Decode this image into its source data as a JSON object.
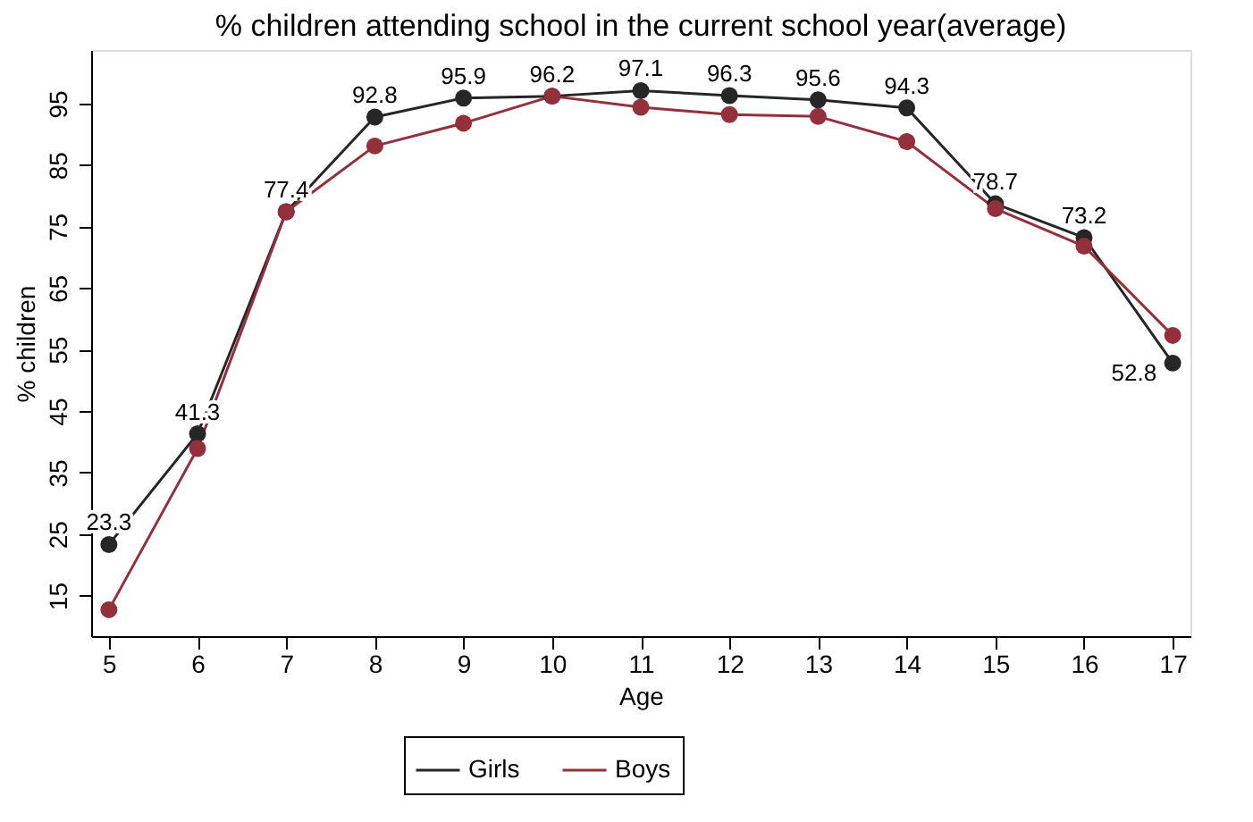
{
  "chart_data": {
    "type": "line",
    "title": "% children attending school in the current school year(average)",
    "xlabel": "Age",
    "ylabel": "% children",
    "x": [
      5,
      6,
      7,
      8,
      9,
      10,
      11,
      12,
      13,
      14,
      15,
      16,
      17
    ],
    "series": [
      {
        "name": "Girls",
        "color": "#262626",
        "values": [
          23.3,
          41.3,
          77.4,
          92.8,
          95.9,
          96.2,
          97.1,
          96.3,
          95.6,
          94.3,
          78.7,
          73.2,
          52.8
        ],
        "value_labels": [
          "23.3",
          "41.3",
          "77.4",
          "92.8",
          "95.9",
          "96.2",
          "97.1",
          "96.3",
          "95.6",
          "94.3",
          "78.7",
          "73.2",
          "52.8"
        ]
      },
      {
        "name": "Boys",
        "color": "#93303b",
        "values": [
          12.7,
          38.9,
          77.4,
          88.1,
          91.8,
          96.2,
          94.4,
          93.2,
          92.9,
          88.8,
          77.9,
          71.8,
          57.3
        ]
      }
    ],
    "xlim": [
      4.8,
      17.2
    ],
    "xticks": [
      5,
      6,
      7,
      8,
      9,
      10,
      11,
      12,
      13,
      14,
      15,
      16,
      17
    ],
    "ylim": [
      8.4,
      103.7
    ],
    "yticks": [
      15,
      25,
      35,
      45,
      55,
      65,
      75,
      85,
      95
    ],
    "grid": false,
    "legend": "bottom",
    "marker": "circle",
    "line_style": "solid"
  }
}
